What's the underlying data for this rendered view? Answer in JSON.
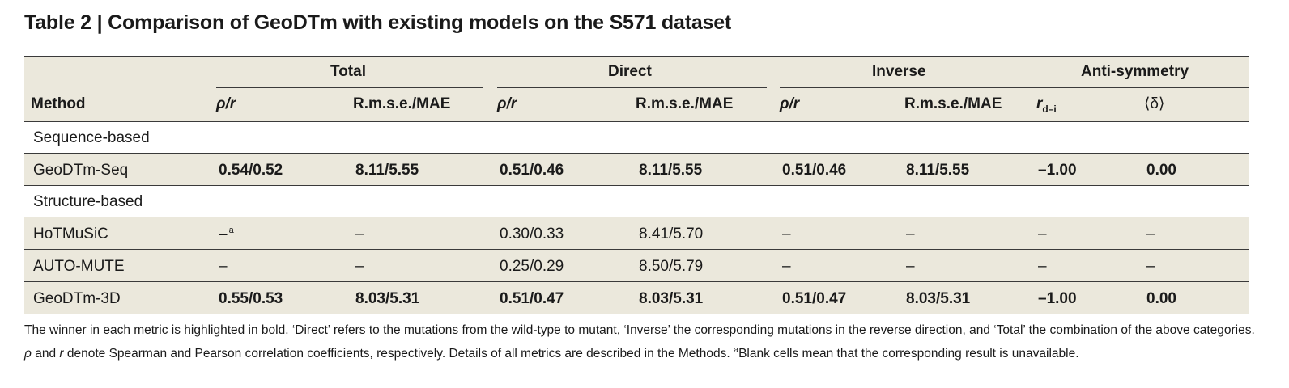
{
  "title": "Table 2 | Comparison of GeoDTm with existing models on the S571 dataset",
  "groups": {
    "total": "Total",
    "direct": "Direct",
    "inverse": "Inverse",
    "antisym": "Anti-symmetry"
  },
  "columns": {
    "method": "Method",
    "rho_r": "ρ/r",
    "rmse_mae": "R.m.s.e./MAE",
    "r_main": "r",
    "r_sub": "d–i",
    "delta": "⟨δ⟩"
  },
  "sections": {
    "sequence": "Sequence-based",
    "structure": "Structure-based"
  },
  "rows": {
    "geodtm_seq": [
      "GeoDTm-Seq",
      "0.54/0.52",
      "8.11/5.55",
      "0.51/0.46",
      "8.11/5.55",
      "0.51/0.46",
      "8.11/5.55",
      "–1.00",
      "0.00"
    ],
    "hotmusic": [
      "HoTMuSiC",
      "–",
      "–",
      "0.30/0.33",
      "8.41/5.70",
      "–",
      "–",
      "–",
      "–"
    ],
    "hotmusic_sup": "a",
    "automute": [
      "AUTO-MUTE",
      "–",
      "–",
      "0.25/0.29",
      "8.50/5.79",
      "–",
      "–",
      "–",
      "–"
    ],
    "geodtm_3d": [
      "GeoDTm-3D",
      "0.55/0.53",
      "8.03/5.31",
      "0.51/0.47",
      "8.03/5.31",
      "0.51/0.47",
      "8.03/5.31",
      "–1.00",
      "0.00"
    ]
  },
  "caption": {
    "part1": "The winner in each metric is highlighted in bold. ‘Direct’ refers to the mutations from the wild-type to mutant, ‘Inverse’ the corresponding mutations in the reverse direction, and ‘Total’ the combination of the above categories. ",
    "rho": "ρ",
    "and": " and ",
    "r": "r",
    "part2": " denote Spearman and Pearson correlation coefficients, respectively. Details of all metrics are described in the Methods. ",
    "sup": "a",
    "part3": "Blank cells mean that the corresponding result is unavailable."
  }
}
